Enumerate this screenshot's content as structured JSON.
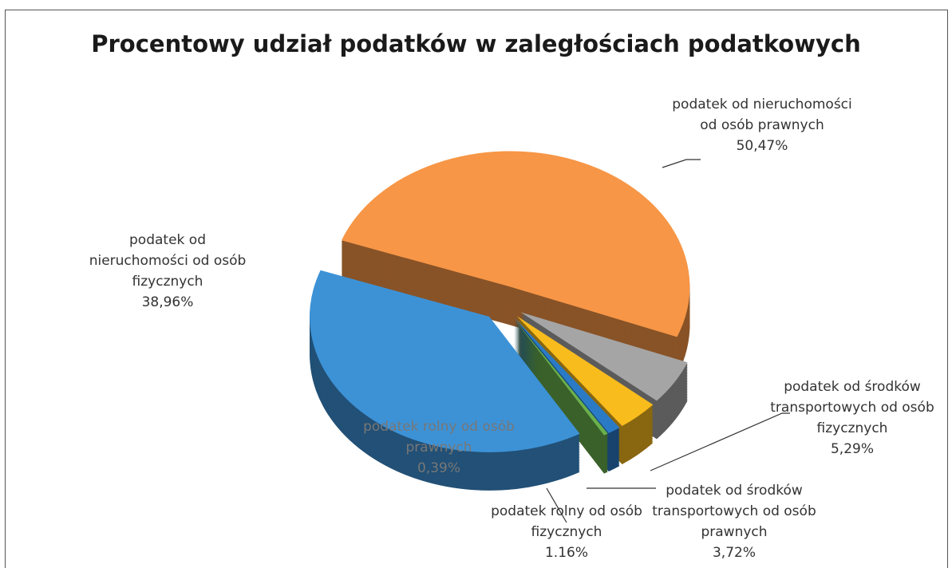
{
  "chart_data": {
    "type": "pie",
    "title": "Procentowy udział podatków w zaległościach podatkowych",
    "categories": [
      "podatek od nieruchomości od osób prawnych",
      "podatek od środków transportowych od osób fizycznych",
      "podatek od środków transportowych od osób prawnych",
      "podatek rolny od osób fizycznych",
      "podatek rolny od osób prawnych",
      "podatek od nieruchomości od osób fizycznych"
    ],
    "values": [
      50.47,
      5.29,
      3.72,
      1.16,
      0.39,
      38.96
    ],
    "value_labels": [
      "50,47%",
      "5,29%",
      "3,72%",
      "1.16%",
      "0,39%",
      "38,96%"
    ],
    "colors": [
      "#f79646",
      "#a5a5a5",
      "#f9bc1d",
      "#2a7ac6",
      "#6ab04c",
      "#3d92d6"
    ]
  }
}
